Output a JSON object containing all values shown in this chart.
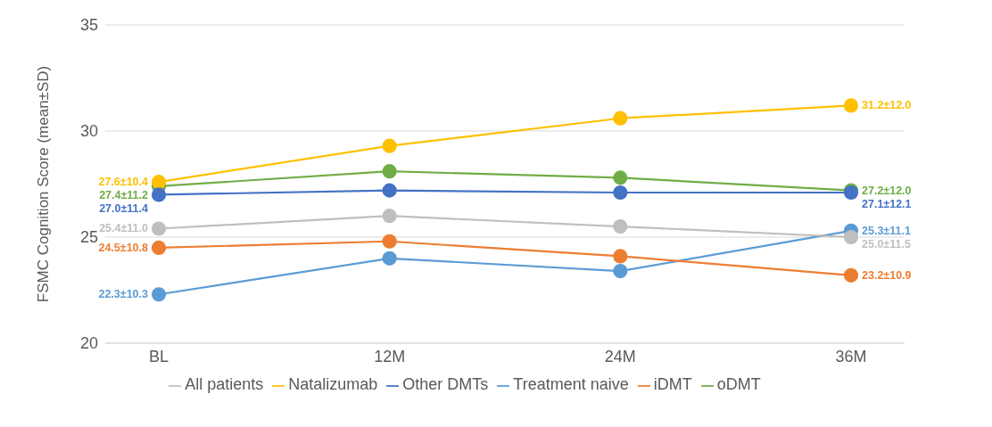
{
  "chart_data": {
    "type": "line",
    "ylabel": "FSMC Cognition Score (mean±SD)",
    "categories": [
      "BL",
      "12M",
      "24M",
      "36M"
    ],
    "ylim": [
      20,
      35
    ],
    "yticks": [
      20,
      25,
      30,
      35
    ],
    "grid": "y",
    "legend": "bottom",
    "marker": "circle",
    "line_style": "solid",
    "series": [
      {
        "name": "Treatment naive",
        "color": "#5b9bd5",
        "values": [
          22.3,
          24.0,
          23.4,
          25.3
        ],
        "value_labels": [
          "22.3±10.3",
          null,
          null,
          "25.3±11.1"
        ]
      },
      {
        "name": "iDMT",
        "color": "#ed7d31",
        "values": [
          24.5,
          24.8,
          24.1,
          23.2
        ],
        "value_labels": [
          "24.5±10.8",
          null,
          null,
          "23.2±10.9"
        ]
      },
      {
        "name": "oDMT",
        "color": "#70ad47",
        "values": [
          27.4,
          28.1,
          27.8,
          27.2
        ],
        "value_labels": [
          "27.4±11.2",
          null,
          null,
          "27.2±12.0"
        ]
      },
      {
        "name": "Natalizumab",
        "color": "#ffc000",
        "values": [
          27.6,
          29.3,
          30.6,
          31.2
        ],
        "value_labels": [
          "27.6±10.4",
          null,
          null,
          "31.2±12.0"
        ]
      },
      {
        "name": "Other DMTs",
        "color": "#4472c4",
        "values": [
          27.0,
          27.2,
          27.1,
          27.1
        ],
        "value_labels": [
          "27.0±11.4",
          null,
          null,
          "27.1±12.1"
        ]
      },
      {
        "name": "All patients",
        "color": "#bfbfbf",
        "values": [
          25.4,
          26.0,
          25.5,
          25.0
        ],
        "value_labels": [
          "25.4±11.0",
          null,
          null,
          "25.0±11.5"
        ]
      }
    ]
  }
}
